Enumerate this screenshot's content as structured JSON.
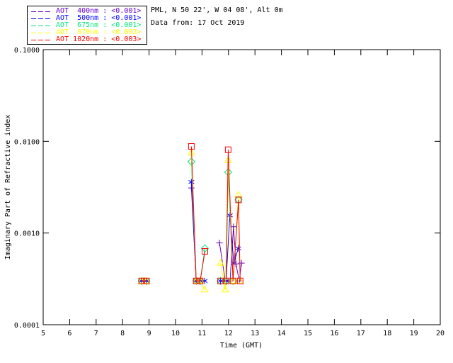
{
  "legend": {
    "items": [
      {
        "wavelength_nm": 400,
        "label": "AOT  400nm : <0.001>",
        "color": "#6600cc"
      },
      {
        "wavelength_nm": 500,
        "label": "AOT  500nm : <0.001>",
        "color": "#0000ff"
      },
      {
        "wavelength_nm": 675,
        "label": "AOT  675nm : <0.001>",
        "color": "#00e87e"
      },
      {
        "wavelength_nm": 870,
        "label": "AOT  870nm : <0.002>",
        "color": "#ffff00"
      },
      {
        "wavelength_nm": 1020,
        "label": "AOT 1020nm : <0.003>",
        "color": "#ff0000"
      }
    ]
  },
  "chart_data": {
    "type": "line",
    "title": "PML, N 50 22', W 04 08', Alt 0m",
    "subtitle": "Data from: 17 Oct 2019",
    "xlabel": "Time (GMT)",
    "ylabel": "Imaginary Part of Refractive index",
    "grid": false,
    "legend_position": "top-left-outside",
    "x_axis": {
      "min": 5,
      "max": 20,
      "ticks": [
        5,
        6,
        7,
        8,
        9,
        10,
        11,
        12,
        13,
        14,
        15,
        16,
        17,
        18,
        19,
        20
      ]
    },
    "y_axis": {
      "scale": "log",
      "min": 0.0001,
      "max": 0.1,
      "tick_values": [
        0.1,
        0.01,
        0.001,
        0.0001
      ],
      "tick_labels": [
        "0.1000",
        "0.0100",
        "0.0010",
        "0.0001"
      ]
    },
    "gap_threshold_hours": 0.5,
    "series": [
      {
        "name": "AOT 400nm",
        "wavelength_nm": 400,
        "aot_label": "<0.001>",
        "color": "#6600cc",
        "marker": "plus",
        "points": [
          [
            8.72,
            0.0003
          ],
          [
            8.9,
            0.0003
          ],
          [
            10.6,
            0.0031
          ],
          [
            10.78,
            0.0003
          ],
          [
            10.93,
            0.0003
          ],
          [
            11.66,
            0.00078
          ],
          [
            11.88,
            0.0003
          ],
          [
            12.06,
            0.0003
          ],
          [
            12.19,
            0.00117
          ],
          [
            12.28,
            0.00046
          ],
          [
            12.41,
            0.0003
          ],
          [
            12.49,
            0.00047
          ]
        ]
      },
      {
        "name": "AOT 500nm",
        "wavelength_nm": 500,
        "aot_label": "<0.001>",
        "color": "#0000ff",
        "marker": "asterisk",
        "points": [
          [
            8.72,
            0.0003
          ],
          [
            8.9,
            0.0003
          ],
          [
            10.6,
            0.0036
          ],
          [
            10.78,
            0.0003
          ],
          [
            10.93,
            0.0003
          ],
          [
            11.1,
            0.0003
          ],
          [
            11.7,
            0.0003
          ],
          [
            11.91,
            0.0003
          ],
          [
            12.05,
            0.00156
          ],
          [
            12.2,
            0.00047
          ],
          [
            12.37,
            0.00068
          ]
        ]
      },
      {
        "name": "AOT 675nm",
        "wavelength_nm": 675,
        "aot_label": "<0.001>",
        "color": "#00e87e",
        "marker": "diamond",
        "points": [
          [
            8.72,
            0.0003
          ],
          [
            8.9,
            0.0003
          ],
          [
            10.6,
            0.006
          ],
          [
            10.78,
            0.0003
          ],
          [
            10.93,
            0.0003
          ],
          [
            11.11,
            0.00068
          ],
          [
            11.7,
            0.0003
          ],
          [
            11.91,
            0.0003
          ],
          [
            11.99,
            0.0046
          ],
          [
            12.17,
            0.0003
          ],
          [
            12.38,
            0.0023
          ]
        ]
      },
      {
        "name": "AOT 870nm",
        "wavelength_nm": 870,
        "aot_label": "<0.002>",
        "color": "#ffff00",
        "marker": "triangle",
        "points": [
          [
            8.72,
            0.0003
          ],
          [
            8.9,
            0.0003
          ],
          [
            10.6,
            0.0075
          ],
          [
            10.78,
            0.0003
          ],
          [
            10.93,
            0.0003
          ],
          [
            11.1,
            0.00024
          ],
          [
            11.7,
            0.00047
          ],
          [
            11.88,
            0.00024
          ],
          [
            11.99,
            0.0062
          ],
          [
            12.17,
            0.0003
          ],
          [
            12.38,
            0.0026
          ],
          [
            12.44,
            0.0003
          ]
        ]
      },
      {
        "name": "AOT 1020nm",
        "wavelength_nm": 1020,
        "aot_label": "<0.003>",
        "color": "#ff0000",
        "marker": "square",
        "points": [
          [
            8.72,
            0.0003
          ],
          [
            8.9,
            0.0003
          ],
          [
            10.6,
            0.0088
          ],
          [
            10.78,
            0.0003
          ],
          [
            10.93,
            0.0003
          ],
          [
            11.11,
            0.00063
          ],
          [
            11.7,
            0.0003
          ],
          [
            11.91,
            0.0003
          ],
          [
            11.99,
            0.0081
          ],
          [
            12.17,
            0.0003
          ],
          [
            12.38,
            0.0023
          ],
          [
            12.44,
            0.0003
          ]
        ]
      }
    ]
  }
}
